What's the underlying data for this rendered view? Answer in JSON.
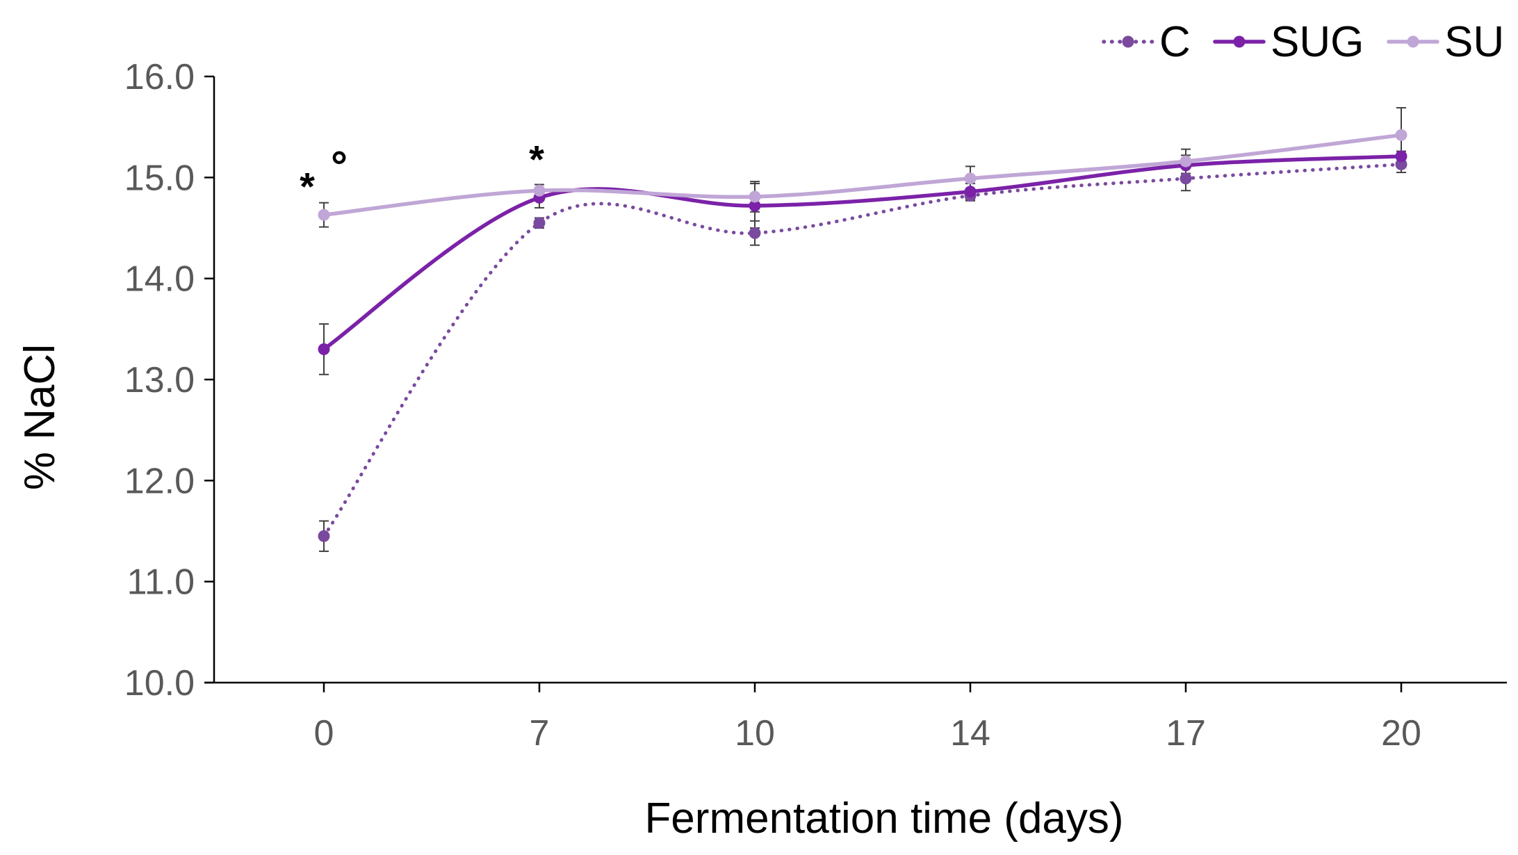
{
  "chart_data": {
    "type": "line",
    "title": "",
    "xlabel": "Fermentation time (days)",
    "ylabel": "% NaCl",
    "categories": [
      "0",
      "7",
      "10",
      "14",
      "17",
      "20"
    ],
    "ylim": [
      10.0,
      16.0
    ],
    "yticks": [
      "10.0",
      "11.0",
      "12.0",
      "13.0",
      "14.0",
      "15.0",
      "16.0"
    ],
    "grid": false,
    "legend_position": "top-right",
    "series": [
      {
        "name": "C",
        "color": "#7a4a9e",
        "style": "dotted",
        "values": [
          11.45,
          14.55,
          14.45,
          14.82,
          14.99,
          15.13
        ],
        "errors": [
          0.15,
          0.05,
          0.12,
          0.05,
          0.12,
          0.08
        ]
      },
      {
        "name": "SUG",
        "color": "#7b22a8",
        "style": "solid",
        "values": [
          13.3,
          14.8,
          14.72,
          14.86,
          15.12,
          15.21
        ],
        "errors": [
          0.25,
          0.1,
          0.22,
          0.08,
          0.1,
          0.05
        ]
      },
      {
        "name": "SU",
        "color": "#c0a6d6",
        "style": "solid",
        "values": [
          14.63,
          14.87,
          14.81,
          14.99,
          15.16,
          15.42
        ],
        "errors": [
          0.12,
          0.06,
          0.15,
          0.12,
          0.12,
          0.27
        ]
      }
    ],
    "annotations": [
      {
        "category": "0",
        "text": "*",
        "y": 15.0
      },
      {
        "category": "0",
        "text": "°",
        "y": 15.0
      },
      {
        "category": "7",
        "text": "*",
        "y": 15.2
      }
    ]
  }
}
